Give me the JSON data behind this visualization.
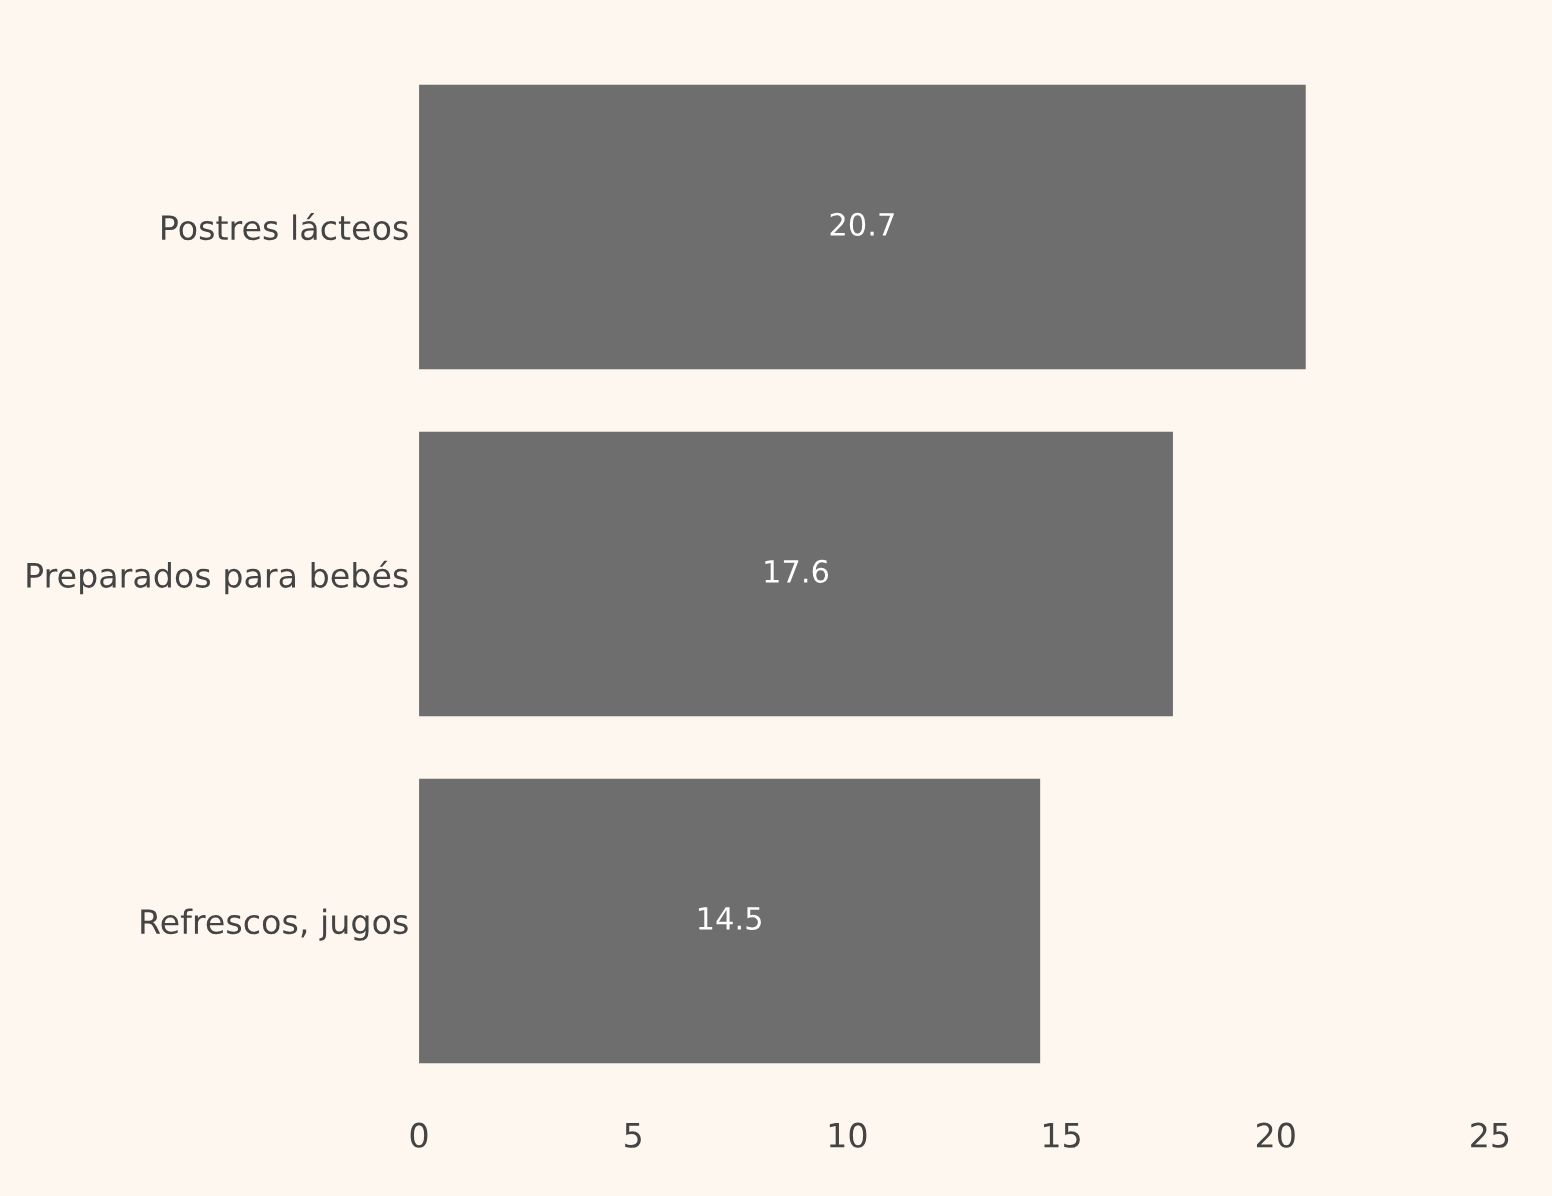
{
  "chart_data": {
    "type": "bar",
    "orientation": "horizontal",
    "categories": [
      "Postres lácteos",
      "Preparados para bebés",
      "Refrescos, jugos"
    ],
    "values": [
      20.7,
      17.6,
      14.5
    ],
    "color": "#6e6e6e",
    "xlim": [
      0,
      25
    ],
    "xticks": [
      0,
      5,
      10,
      15,
      20,
      25
    ],
    "grid": false,
    "data_labels": true
  }
}
